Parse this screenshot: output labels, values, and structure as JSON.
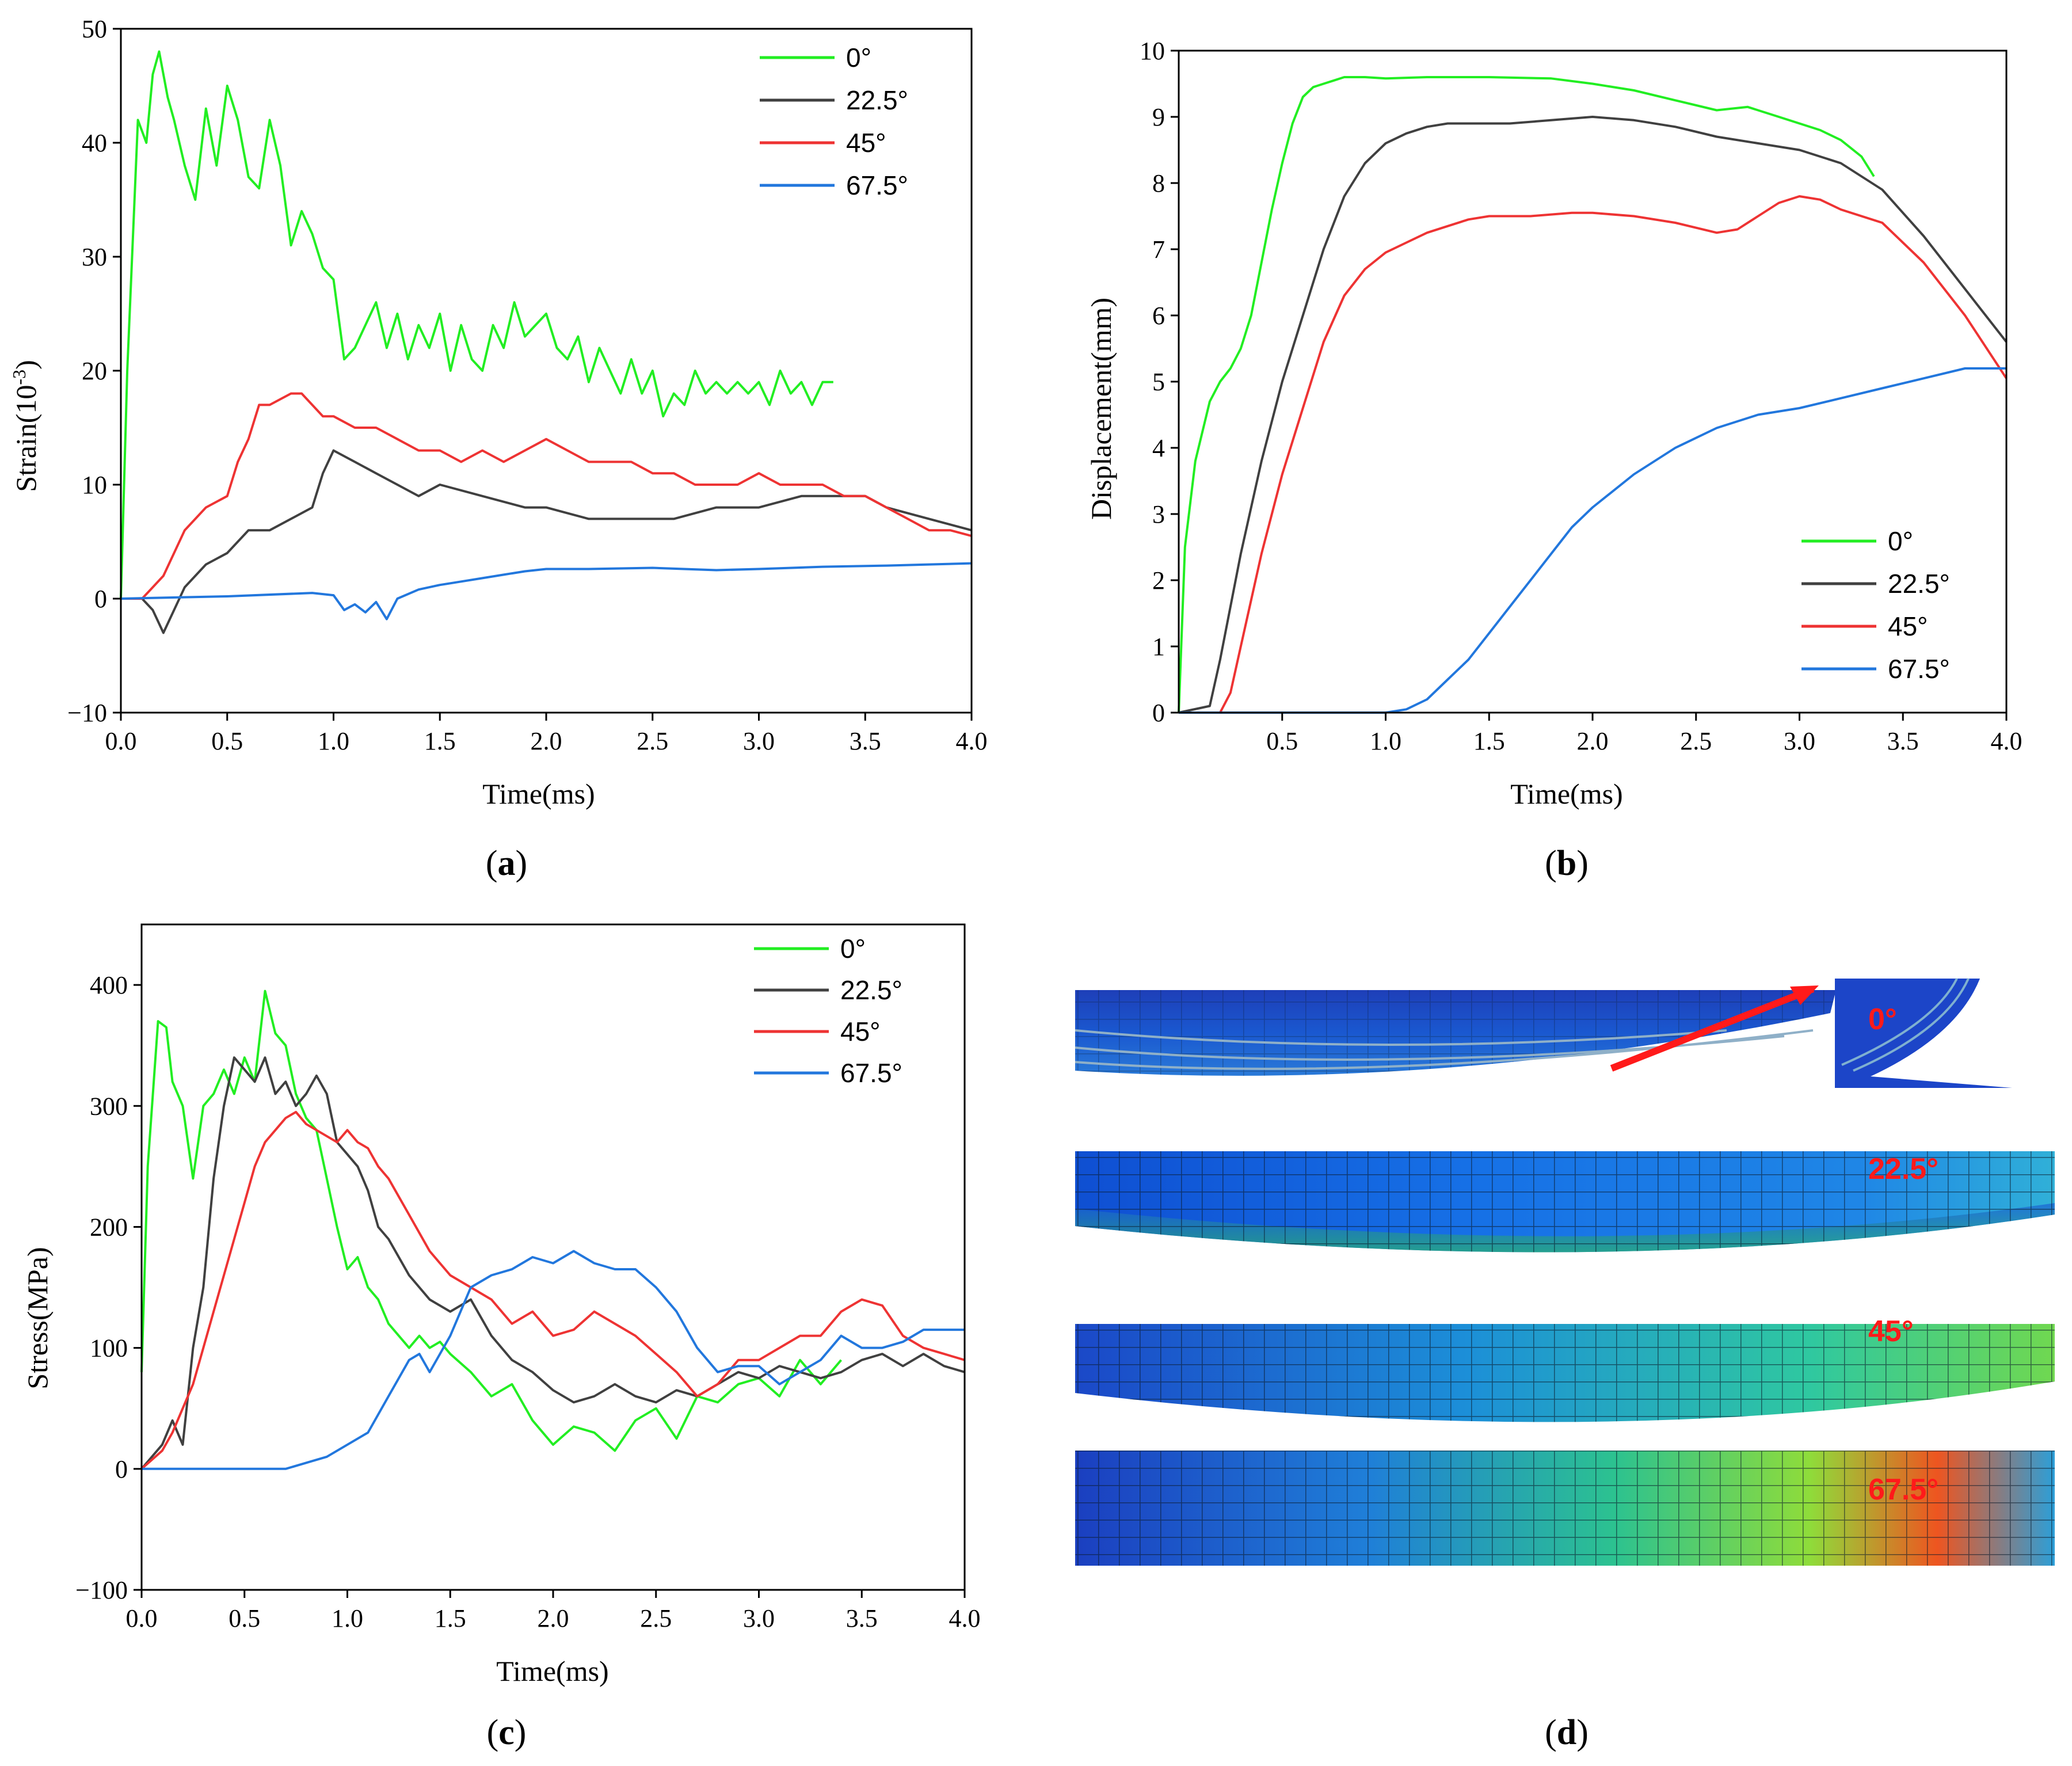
{
  "colors": {
    "deg0": "#22ee22",
    "deg22": "#404040",
    "deg45": "#ee3333",
    "deg67": "#2277dd",
    "label": "#ff1a1a"
  },
  "chart_data": [
    {
      "panel": "a",
      "type": "line",
      "caption_letter": "a",
      "xlabel": "Time(ms)",
      "ylabel": "Strain(10",
      "ylabel_sup": "-3",
      "ylabel_close": ")",
      "xlim": [
        0,
        4
      ],
      "ylim": [
        -10,
        50
      ],
      "xticks": [
        "0.0",
        "0.5",
        "1.0",
        "1.5",
        "2.0",
        "2.5",
        "3.0",
        "3.5",
        "4.0"
      ],
      "yticks": [
        "−10",
        "0",
        "10",
        "20",
        "30",
        "40",
        "50"
      ],
      "legend_position": "top-right",
      "series": [
        {
          "name": "0°",
          "color_key": "deg0",
          "x": [
            0,
            0.03,
            0.08,
            0.12,
            0.15,
            0.18,
            0.22,
            0.25,
            0.3,
            0.35,
            0.4,
            0.45,
            0.5,
            0.55,
            0.6,
            0.65,
            0.7,
            0.75,
            0.8,
            0.85,
            0.9,
            0.95,
            1.0,
            1.05,
            1.1,
            1.15,
            1.2,
            1.25,
            1.3,
            1.35,
            1.4,
            1.45,
            1.5,
            1.55,
            1.6,
            1.65,
            1.7,
            1.75,
            1.8,
            1.85,
            1.9,
            1.95,
            2.0,
            2.05,
            2.1,
            2.15,
            2.2,
            2.25,
            2.3,
            2.35,
            2.4,
            2.45,
            2.5,
            2.55,
            2.6,
            2.65,
            2.7,
            2.75,
            2.8,
            2.85,
            2.9,
            2.95,
            3.0,
            3.05,
            3.1,
            3.15,
            3.2,
            3.25,
            3.3,
            3.35
          ],
          "y": [
            0,
            20,
            42,
            40,
            46,
            48,
            44,
            42,
            38,
            35,
            43,
            38,
            45,
            42,
            37,
            36,
            42,
            38,
            31,
            34,
            32,
            29,
            28,
            21,
            22,
            24,
            26,
            22,
            25,
            21,
            24,
            22,
            25,
            20,
            24,
            21,
            20,
            24,
            22,
            26,
            23,
            24,
            25,
            22,
            21,
            23,
            19,
            22,
            20,
            18,
            21,
            18,
            20,
            16,
            18,
            17,
            20,
            18,
            19,
            18,
            19,
            18,
            19,
            17,
            20,
            18,
            19,
            17,
            19,
            19
          ]
        },
        {
          "name": "22.5°",
          "color_key": "deg22",
          "x": [
            0,
            0.1,
            0.15,
            0.2,
            0.25,
            0.3,
            0.4,
            0.5,
            0.6,
            0.7,
            0.8,
            0.9,
            0.95,
            1.0,
            1.1,
            1.2,
            1.3,
            1.4,
            1.5,
            1.7,
            1.9,
            2.0,
            2.2,
            2.4,
            2.6,
            2.8,
            3.0,
            3.2,
            3.4,
            3.5,
            3.6,
            3.8,
            4.0
          ],
          "y": [
            0,
            0,
            -1,
            -3,
            -1,
            1,
            3,
            4,
            6,
            6,
            7,
            8,
            11,
            13,
            12,
            11,
            10,
            9,
            10,
            9,
            8,
            8,
            7,
            7,
            7,
            8,
            8,
            9,
            9,
            9,
            8,
            7,
            6
          ]
        },
        {
          "name": "45°",
          "color_key": "deg45",
          "x": [
            0,
            0.1,
            0.15,
            0.2,
            0.25,
            0.3,
            0.4,
            0.5,
            0.55,
            0.6,
            0.65,
            0.7,
            0.8,
            0.85,
            0.9,
            0.95,
            1.0,
            1.1,
            1.2,
            1.3,
            1.4,
            1.5,
            1.6,
            1.7,
            1.8,
            1.9,
            2.0,
            2.1,
            2.2,
            2.3,
            2.4,
            2.5,
            2.6,
            2.7,
            2.8,
            2.9,
            3.0,
            3.1,
            3.2,
            3.3,
            3.4,
            3.5,
            3.6,
            3.7,
            3.8,
            3.9,
            4.0
          ],
          "y": [
            0,
            0,
            1,
            2,
            4,
            6,
            8,
            9,
            12,
            14,
            17,
            17,
            18,
            18,
            17,
            16,
            16,
            15,
            15,
            14,
            13,
            13,
            12,
            13,
            12,
            13,
            14,
            13,
            12,
            12,
            12,
            11,
            11,
            10,
            10,
            10,
            11,
            10,
            10,
            10,
            9,
            9,
            8,
            7,
            6,
            6,
            5.5
          ]
        },
        {
          "name": "67.5°",
          "color_key": "deg67",
          "x": [
            0,
            0.5,
            0.9,
            1.0,
            1.05,
            1.1,
            1.15,
            1.2,
            1.25,
            1.3,
            1.4,
            1.5,
            1.6,
            1.7,
            1.8,
            1.9,
            2.0,
            2.2,
            2.5,
            2.8,
            3.0,
            3.3,
            3.6,
            3.8,
            4.0
          ],
          "y": [
            0,
            0.2,
            0.5,
            0.3,
            -1,
            -0.5,
            -1.2,
            -0.3,
            -1.8,
            0,
            0.8,
            1.2,
            1.5,
            1.8,
            2.1,
            2.4,
            2.6,
            2.6,
            2.7,
            2.5,
            2.6,
            2.8,
            2.9,
            3.0,
            3.1
          ]
        }
      ]
    },
    {
      "panel": "b",
      "type": "line",
      "caption_letter": "b",
      "xlabel": "Time(ms)",
      "ylabel": "Displacement(mm)",
      "xlim": [
        0,
        4
      ],
      "ylim": [
        0,
        10
      ],
      "xticks": [
        "0.5",
        "1.0",
        "1.5",
        "2.0",
        "2.5",
        "3.0",
        "3.5",
        "4.0"
      ],
      "yticks": [
        "0",
        "1",
        "2",
        "3",
        "4",
        "5",
        "6",
        "7",
        "8",
        "9",
        "10"
      ],
      "legend_position": "bottom-right",
      "series": [
        {
          "name": "0°",
          "color_key": "deg0",
          "x": [
            0,
            0.03,
            0.08,
            0.15,
            0.2,
            0.25,
            0.3,
            0.35,
            0.4,
            0.45,
            0.5,
            0.55,
            0.6,
            0.65,
            0.7,
            0.75,
            0.8,
            0.9,
            1.0,
            1.2,
            1.5,
            1.8,
            2.0,
            2.2,
            2.4,
            2.6,
            2.75,
            2.9,
            3.0,
            3.1,
            3.2,
            3.3,
            3.36
          ],
          "y": [
            0,
            2.5,
            3.8,
            4.7,
            5.0,
            5.2,
            5.5,
            6.0,
            6.8,
            7.6,
            8.3,
            8.9,
            9.3,
            9.45,
            9.5,
            9.55,
            9.6,
            9.6,
            9.58,
            9.6,
            9.6,
            9.58,
            9.5,
            9.4,
            9.25,
            9.1,
            9.15,
            9.0,
            8.9,
            8.8,
            8.65,
            8.4,
            8.1
          ]
        },
        {
          "name": "22.5°",
          "color_key": "deg22",
          "x": [
            0,
            0.15,
            0.2,
            0.3,
            0.4,
            0.5,
            0.6,
            0.7,
            0.8,
            0.9,
            1.0,
            1.1,
            1.2,
            1.3,
            1.4,
            1.6,
            1.8,
            2.0,
            2.2,
            2.4,
            2.6,
            2.8,
            3.0,
            3.2,
            3.4,
            3.6,
            3.8,
            4.0
          ],
          "y": [
            0,
            0.1,
            0.8,
            2.4,
            3.8,
            5.0,
            6.0,
            7.0,
            7.8,
            8.3,
            8.6,
            8.75,
            8.85,
            8.9,
            8.9,
            8.9,
            8.95,
            9.0,
            8.95,
            8.85,
            8.7,
            8.6,
            8.5,
            8.3,
            7.9,
            7.2,
            6.4,
            5.6
          ]
        },
        {
          "name": "45°",
          "color_key": "deg45",
          "x": [
            0,
            0.2,
            0.25,
            0.3,
            0.4,
            0.5,
            0.6,
            0.7,
            0.8,
            0.9,
            1.0,
            1.1,
            1.2,
            1.3,
            1.4,
            1.5,
            1.7,
            1.9,
            2.0,
            2.2,
            2.4,
            2.6,
            2.7,
            2.8,
            2.9,
            3.0,
            3.1,
            3.2,
            3.4,
            3.6,
            3.8,
            4.0
          ],
          "y": [
            0,
            0,
            0.3,
            1.0,
            2.4,
            3.6,
            4.6,
            5.6,
            6.3,
            6.7,
            6.95,
            7.1,
            7.25,
            7.35,
            7.45,
            7.5,
            7.5,
            7.55,
            7.55,
            7.5,
            7.4,
            7.25,
            7.3,
            7.5,
            7.7,
            7.8,
            7.75,
            7.6,
            7.4,
            6.8,
            6.0,
            5.05
          ]
        },
        {
          "name": "67.5°",
          "color_key": "deg67",
          "x": [
            0,
            0.5,
            1.0,
            1.1,
            1.2,
            1.3,
            1.4,
            1.5,
            1.6,
            1.7,
            1.8,
            1.9,
            2.0,
            2.2,
            2.4,
            2.6,
            2.8,
            3.0,
            3.2,
            3.4,
            3.6,
            3.8,
            4.0
          ],
          "y": [
            0,
            0,
            0,
            0.05,
            0.2,
            0.5,
            0.8,
            1.2,
            1.6,
            2.0,
            2.4,
            2.8,
            3.1,
            3.6,
            4.0,
            4.3,
            4.5,
            4.6,
            4.75,
            4.9,
            5.05,
            5.2,
            5.2
          ]
        }
      ]
    },
    {
      "panel": "c",
      "type": "line",
      "caption_letter": "c",
      "xlabel": "Time(ms)",
      "ylabel": "Stress(MPa)",
      "xlim": [
        0,
        4
      ],
      "ylim": [
        -100,
        450
      ],
      "xticks": [
        "0.0",
        "0.5",
        "1.0",
        "1.5",
        "2.0",
        "2.5",
        "3.0",
        "3.5",
        "4.0"
      ],
      "yticks": [
        "−100",
        "0",
        "100",
        "200",
        "300",
        "400"
      ],
      "legend_position": "top-right",
      "series": [
        {
          "name": "0°",
          "color_key": "deg0",
          "x": [
            0,
            0.03,
            0.08,
            0.12,
            0.15,
            0.2,
            0.25,
            0.3,
            0.35,
            0.4,
            0.45,
            0.5,
            0.55,
            0.6,
            0.65,
            0.7,
            0.75,
            0.8,
            0.85,
            0.9,
            0.95,
            1.0,
            1.05,
            1.1,
            1.15,
            1.2,
            1.25,
            1.3,
            1.35,
            1.4,
            1.45,
            1.5,
            1.6,
            1.7,
            1.8,
            1.9,
            2.0,
            2.1,
            2.2,
            2.3,
            2.4,
            2.5,
            2.6,
            2.7,
            2.8,
            2.9,
            3.0,
            3.1,
            3.2,
            3.3,
            3.4
          ],
          "y": [
            80,
            250,
            370,
            365,
            320,
            300,
            240,
            300,
            310,
            330,
            310,
            340,
            320,
            395,
            360,
            350,
            310,
            290,
            280,
            240,
            200,
            165,
            175,
            150,
            140,
            120,
            110,
            100,
            110,
            100,
            105,
            95,
            80,
            60,
            70,
            40,
            20,
            35,
            30,
            15,
            40,
            50,
            25,
            60,
            55,
            70,
            75,
            60,
            90,
            70,
            90
          ]
        },
        {
          "name": "22.5°",
          "color_key": "deg22",
          "x": [
            0,
            0.1,
            0.15,
            0.2,
            0.25,
            0.3,
            0.35,
            0.4,
            0.45,
            0.5,
            0.55,
            0.6,
            0.65,
            0.7,
            0.75,
            0.8,
            0.85,
            0.9,
            0.95,
            1.0,
            1.05,
            1.1,
            1.15,
            1.2,
            1.3,
            1.4,
            1.5,
            1.6,
            1.7,
            1.8,
            1.9,
            2.0,
            2.1,
            2.2,
            2.3,
            2.4,
            2.5,
            2.6,
            2.7,
            2.8,
            2.9,
            3.0,
            3.1,
            3.2,
            3.3,
            3.4,
            3.5,
            3.6,
            3.7,
            3.8,
            3.9,
            4.0
          ],
          "y": [
            0,
            20,
            40,
            20,
            100,
            150,
            240,
            300,
            340,
            330,
            320,
            340,
            310,
            320,
            300,
            310,
            325,
            310,
            270,
            260,
            250,
            230,
            200,
            190,
            160,
            140,
            130,
            140,
            110,
            90,
            80,
            65,
            55,
            60,
            70,
            60,
            55,
            65,
            60,
            70,
            80,
            75,
            85,
            80,
            75,
            80,
            90,
            95,
            85,
            95,
            85,
            80
          ]
        },
        {
          "name": "45°",
          "color_key": "deg45",
          "x": [
            0,
            0.1,
            0.15,
            0.2,
            0.25,
            0.3,
            0.35,
            0.4,
            0.45,
            0.5,
            0.55,
            0.6,
            0.65,
            0.7,
            0.75,
            0.8,
            0.85,
            0.9,
            0.95,
            1.0,
            1.05,
            1.1,
            1.15,
            1.2,
            1.3,
            1.4,
            1.5,
            1.6,
            1.7,
            1.8,
            1.9,
            2.0,
            2.1,
            2.2,
            2.3,
            2.4,
            2.5,
            2.6,
            2.7,
            2.8,
            2.9,
            3.0,
            3.1,
            3.2,
            3.3,
            3.4,
            3.5,
            3.6,
            3.7,
            3.8,
            3.9,
            4.0
          ],
          "y": [
            0,
            15,
            30,
            50,
            70,
            100,
            130,
            160,
            190,
            220,
            250,
            270,
            280,
            290,
            295,
            285,
            280,
            275,
            270,
            280,
            270,
            265,
            250,
            240,
            210,
            180,
            160,
            150,
            140,
            120,
            130,
            110,
            115,
            130,
            120,
            110,
            95,
            80,
            60,
            70,
            90,
            90,
            100,
            110,
            110,
            130,
            140,
            135,
            110,
            100,
            95,
            90
          ]
        },
        {
          "name": "67.5°",
          "color_key": "deg67",
          "x": [
            0,
            0.5,
            0.7,
            0.8,
            0.9,
            1.0,
            1.1,
            1.2,
            1.3,
            1.35,
            1.4,
            1.5,
            1.6,
            1.7,
            1.8,
            1.9,
            2.0,
            2.1,
            2.2,
            2.3,
            2.4,
            2.5,
            2.6,
            2.7,
            2.8,
            2.9,
            3.0,
            3.1,
            3.2,
            3.3,
            3.4,
            3.5,
            3.6,
            3.7,
            3.8,
            3.9,
            4.0
          ],
          "y": [
            0,
            0,
            0,
            5,
            10,
            20,
            30,
            60,
            90,
            95,
            80,
            110,
            150,
            160,
            165,
            175,
            170,
            180,
            170,
            165,
            165,
            150,
            130,
            100,
            80,
            85,
            85,
            70,
            80,
            90,
            110,
            100,
            100,
            105,
            115,
            115,
            115
          ]
        }
      ]
    }
  ],
  "panel_d": {
    "caption_letter": "d",
    "labels": [
      "0°",
      "22.5°",
      "45°",
      "67.5°"
    ]
  }
}
